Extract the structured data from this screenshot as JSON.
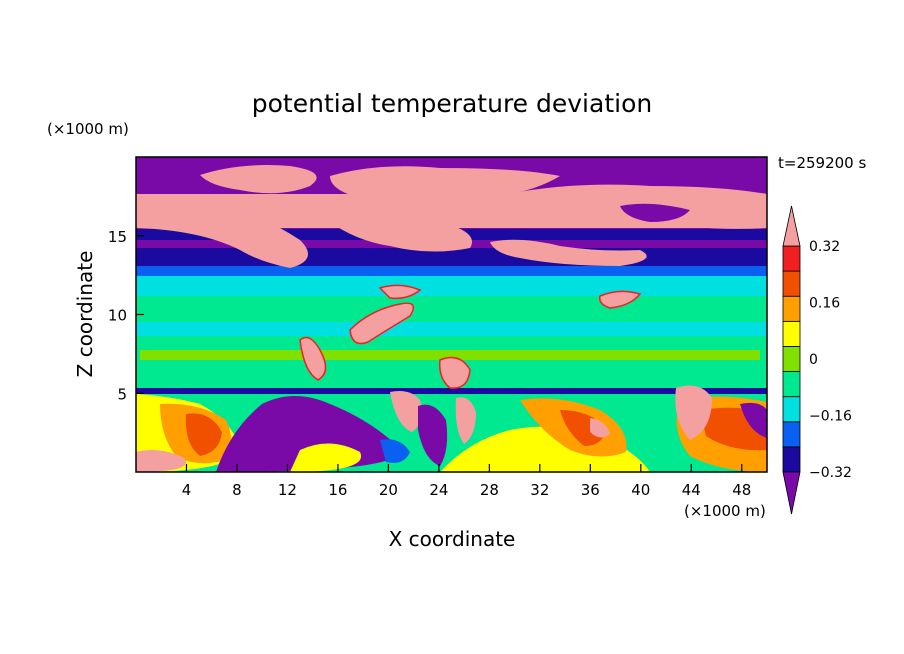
{
  "chart_data": {
    "type": "heatmap",
    "title": "potential temperature deviation",
    "xlabel": "X coordinate",
    "ylabel": "Z coordinate",
    "x_unit": "(×1000 m)",
    "y_unit": "(×1000 m)",
    "time_label": "t=259200 s",
    "xlim": [
      0,
      50
    ],
    "ylim": [
      0,
      20
    ],
    "xticks": [
      4,
      8,
      12,
      16,
      20,
      24,
      28,
      32,
      36,
      40,
      44,
      48
    ],
    "yticks": [
      5,
      10,
      15
    ],
    "colorbar": {
      "levels": [
        -0.4,
        -0.32,
        -0.24,
        -0.16,
        -0.08,
        0,
        0.08,
        0.16,
        0.24,
        0.32,
        0.4
      ],
      "labeled": [
        0.32,
        0.16,
        0,
        -0.16,
        -0.32
      ],
      "labels": [
        "0.32",
        "0.16",
        "0",
        "−0.16",
        "−0.32"
      ],
      "colors": [
        "#7a0aa8",
        "#1a0aa0",
        "#0a60f0",
        "#00e0e0",
        "#00e890",
        "#80e000",
        "#ffff00",
        "#ffa000",
        "#f05000",
        "#f02020",
        "#f4a0a0"
      ],
      "extend": "both"
    },
    "grid": false
  }
}
